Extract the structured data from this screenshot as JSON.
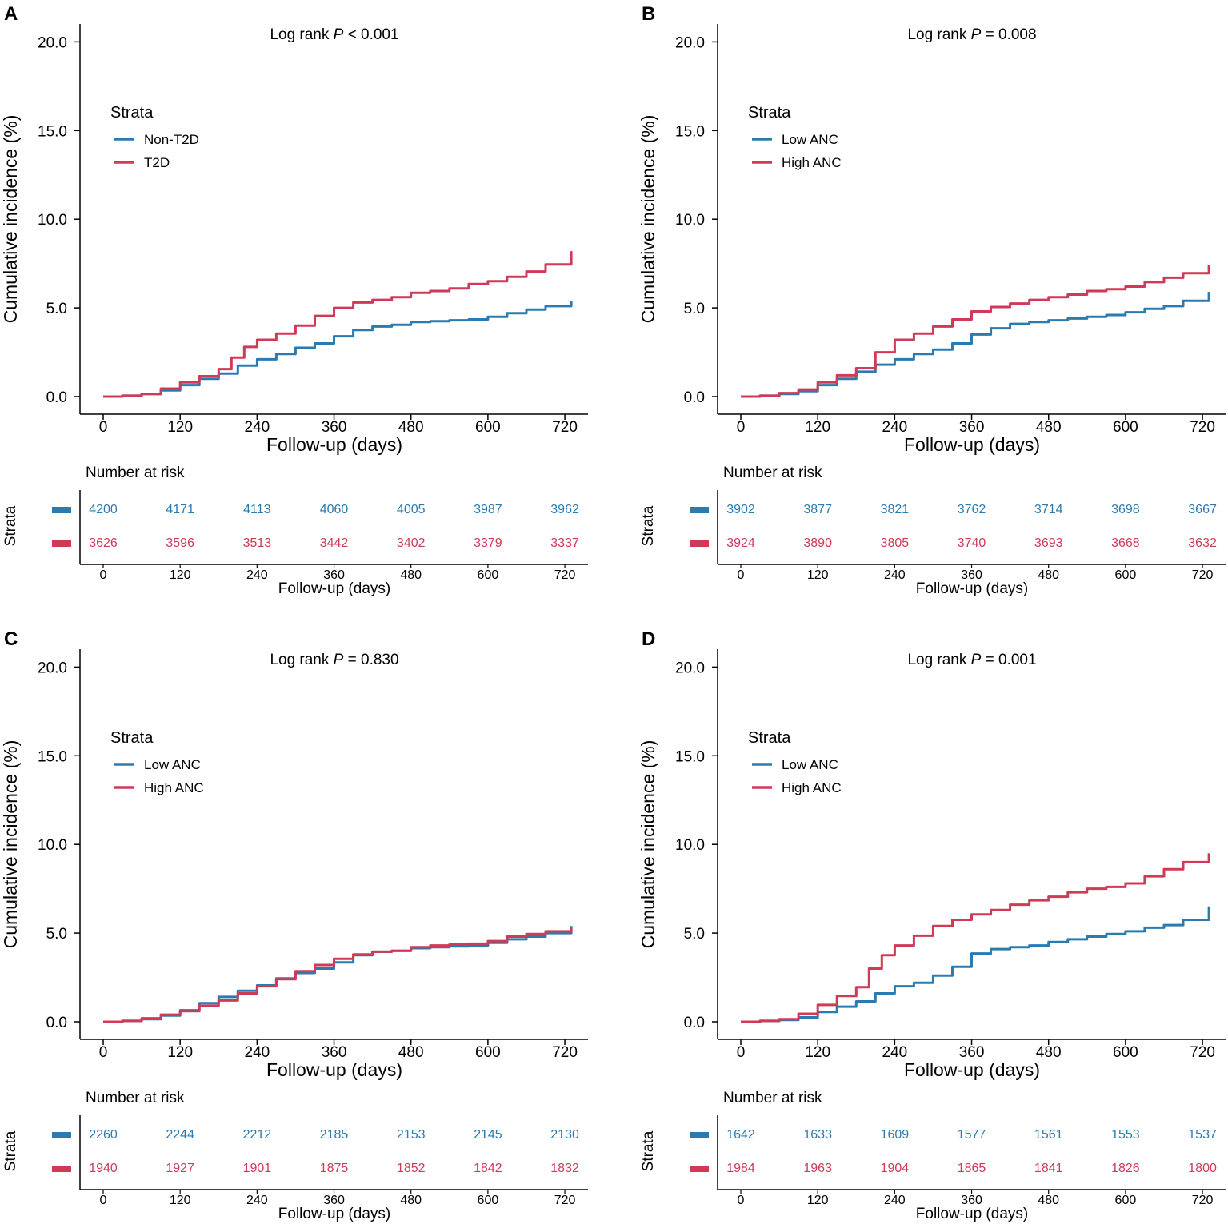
{
  "figure": {
    "x_axis_label": "Follow-up (days)",
    "y_axis_label": "Cumulative incidence (%)",
    "legend_title": "Strata",
    "risk_title": "Number at risk",
    "risk_axis_label": "Strata",
    "risk_x_axis_label": "Follow-up (days)",
    "colors": {
      "series1": "#2b7bb0",
      "series2": "#cf3a57"
    }
  },
  "chart_data": [
    {
      "panel": "A",
      "type": "line",
      "title_prefix": "Log rank ",
      "title_p": "P",
      "title_suffix": " < 0.001",
      "xlabel": "Follow-up (days)",
      "ylabel": "Cumulative incidence (%)",
      "xlim": [
        0,
        730
      ],
      "ylim": [
        0,
        20
      ],
      "x_ticks": [
        "0",
        "120",
        "240",
        "360",
        "480",
        "600",
        "720"
      ],
      "y_ticks": [
        "0.0",
        "5.0",
        "10.0",
        "15.0",
        "20.0"
      ],
      "legend_title": "Strata",
      "series": [
        {
          "name": "Non-T2D",
          "color": "#2b7bb0",
          "x": [
            0,
            30,
            60,
            90,
            120,
            150,
            180,
            210,
            240,
            270,
            300,
            330,
            360,
            390,
            420,
            450,
            480,
            510,
            540,
            570,
            600,
            630,
            660,
            690,
            730
          ],
          "y": [
            0,
            0.05,
            0.15,
            0.35,
            0.65,
            1.0,
            1.3,
            1.75,
            2.1,
            2.4,
            2.75,
            3.0,
            3.4,
            3.75,
            3.95,
            4.05,
            4.2,
            4.25,
            4.3,
            4.35,
            4.5,
            4.7,
            4.9,
            5.1,
            5.4
          ],
          "at_risk": [
            "4200",
            "4171",
            "4113",
            "4060",
            "4005",
            "3987",
            "3962"
          ]
        },
        {
          "name": "T2D",
          "color": "#cf3a57",
          "x": [
            0,
            30,
            60,
            90,
            120,
            150,
            180,
            200,
            220,
            240,
            270,
            300,
            330,
            360,
            390,
            420,
            450,
            480,
            510,
            540,
            570,
            600,
            630,
            660,
            690,
            730
          ],
          "y": [
            0,
            0.05,
            0.15,
            0.45,
            0.8,
            1.15,
            1.55,
            2.2,
            2.8,
            3.2,
            3.55,
            4.0,
            4.55,
            5.0,
            5.3,
            5.45,
            5.6,
            5.85,
            5.95,
            6.1,
            6.35,
            6.5,
            6.75,
            7.05,
            7.45,
            8.2
          ],
          "at_risk": [
            "3626",
            "3596",
            "3513",
            "3442",
            "3402",
            "3379",
            "3337"
          ]
        }
      ]
    },
    {
      "panel": "B",
      "type": "line",
      "title_prefix": "Log rank ",
      "title_p": "P",
      "title_suffix": " = 0.008",
      "xlabel": "Follow-up (days)",
      "ylabel": "Cumulative incidence (%)",
      "xlim": [
        0,
        730
      ],
      "ylim": [
        0,
        20
      ],
      "x_ticks": [
        "0",
        "120",
        "240",
        "360",
        "480",
        "600",
        "720"
      ],
      "y_ticks": [
        "0.0",
        "5.0",
        "10.0",
        "15.0",
        "20.0"
      ],
      "legend_title": "Strata",
      "series": [
        {
          "name": "Low ANC",
          "color": "#2b7bb0",
          "x": [
            0,
            30,
            60,
            90,
            120,
            150,
            180,
            210,
            240,
            270,
            300,
            330,
            360,
            390,
            420,
            450,
            480,
            510,
            540,
            570,
            600,
            630,
            660,
            690,
            730
          ],
          "y": [
            0,
            0.05,
            0.15,
            0.3,
            0.65,
            1.0,
            1.4,
            1.8,
            2.1,
            2.4,
            2.65,
            3.0,
            3.5,
            3.85,
            4.1,
            4.2,
            4.3,
            4.4,
            4.5,
            4.6,
            4.75,
            4.95,
            5.1,
            5.4,
            5.9
          ],
          "at_risk": [
            "3902",
            "3877",
            "3821",
            "3762",
            "3714",
            "3698",
            "3667"
          ]
        },
        {
          "name": "High ANC",
          "color": "#cf3a57",
          "x": [
            0,
            30,
            60,
            90,
            120,
            150,
            180,
            210,
            240,
            270,
            300,
            330,
            360,
            390,
            420,
            450,
            480,
            510,
            540,
            570,
            600,
            630,
            660,
            690,
            730
          ],
          "y": [
            0,
            0.05,
            0.2,
            0.4,
            0.8,
            1.2,
            1.6,
            2.5,
            3.2,
            3.55,
            3.95,
            4.35,
            4.8,
            5.05,
            5.25,
            5.45,
            5.6,
            5.75,
            5.95,
            6.05,
            6.2,
            6.45,
            6.7,
            6.95,
            7.4
          ],
          "at_risk": [
            "3924",
            "3890",
            "3805",
            "3740",
            "3693",
            "3668",
            "3632"
          ]
        }
      ]
    },
    {
      "panel": "C",
      "type": "line",
      "title_prefix": "Log rank ",
      "title_p": "P",
      "title_suffix": " = 0.830",
      "xlabel": "Follow-up (days)",
      "ylabel": "Cumulative incidence (%)",
      "xlim": [
        0,
        730
      ],
      "ylim": [
        0,
        20
      ],
      "x_ticks": [
        "0",
        "120",
        "240",
        "360",
        "480",
        "600",
        "720"
      ],
      "y_ticks": [
        "0.0",
        "5.0",
        "10.0",
        "15.0",
        "20.0"
      ],
      "legend_title": "Strata",
      "series": [
        {
          "name": "Low ANC",
          "color": "#2b7bb0",
          "x": [
            0,
            30,
            60,
            90,
            120,
            150,
            180,
            210,
            240,
            270,
            300,
            330,
            360,
            390,
            420,
            450,
            480,
            510,
            540,
            570,
            600,
            630,
            660,
            690,
            730
          ],
          "y": [
            0,
            0.05,
            0.15,
            0.35,
            0.65,
            1.05,
            1.4,
            1.75,
            2.05,
            2.45,
            2.75,
            3.0,
            3.35,
            3.75,
            3.95,
            4.0,
            4.15,
            4.2,
            4.25,
            4.3,
            4.45,
            4.65,
            4.8,
            5.0,
            5.4
          ],
          "at_risk": [
            "2260",
            "2244",
            "2212",
            "2185",
            "2153",
            "2145",
            "2130"
          ]
        },
        {
          "name": "High ANC",
          "color": "#cf3a57",
          "x": [
            0,
            30,
            60,
            90,
            120,
            150,
            180,
            210,
            240,
            270,
            300,
            330,
            360,
            390,
            420,
            450,
            480,
            510,
            540,
            570,
            600,
            630,
            660,
            690,
            730
          ],
          "y": [
            0,
            0.05,
            0.2,
            0.4,
            0.6,
            0.9,
            1.2,
            1.6,
            2.0,
            2.4,
            2.85,
            3.2,
            3.55,
            3.8,
            3.95,
            4.0,
            4.2,
            4.3,
            4.35,
            4.4,
            4.55,
            4.8,
            4.95,
            5.1,
            5.3
          ],
          "at_risk": [
            "1940",
            "1927",
            "1901",
            "1875",
            "1852",
            "1842",
            "1832"
          ]
        }
      ]
    },
    {
      "panel": "D",
      "type": "line",
      "title_prefix": "Log rank ",
      "title_p": "P",
      "title_suffix": " = 0.001",
      "xlabel": "Follow-up (days)",
      "ylabel": "Cumulative incidence (%)",
      "xlim": [
        0,
        730
      ],
      "ylim": [
        0,
        20
      ],
      "x_ticks": [
        "0",
        "120",
        "240",
        "360",
        "480",
        "600",
        "720"
      ],
      "y_ticks": [
        "0.0",
        "5.0",
        "10.0",
        "15.0",
        "20.0"
      ],
      "legend_title": "Strata",
      "series": [
        {
          "name": "Low ANC",
          "color": "#2b7bb0",
          "x": [
            0,
            30,
            60,
            90,
            120,
            150,
            180,
            210,
            240,
            270,
            300,
            330,
            360,
            390,
            420,
            450,
            480,
            510,
            540,
            570,
            600,
            630,
            660,
            690,
            730
          ],
          "y": [
            0,
            0.05,
            0.1,
            0.25,
            0.55,
            0.85,
            1.15,
            1.6,
            2.0,
            2.2,
            2.6,
            3.1,
            3.85,
            4.1,
            4.2,
            4.3,
            4.5,
            4.65,
            4.8,
            4.95,
            5.1,
            5.3,
            5.45,
            5.75,
            6.5
          ],
          "at_risk": [
            "1642",
            "1633",
            "1609",
            "1577",
            "1561",
            "1553",
            "1537"
          ]
        },
        {
          "name": "High ANC",
          "color": "#cf3a57",
          "x": [
            0,
            30,
            60,
            90,
            120,
            150,
            180,
            200,
            220,
            240,
            270,
            300,
            330,
            360,
            390,
            420,
            450,
            480,
            510,
            540,
            570,
            600,
            630,
            660,
            690,
            730
          ],
          "y": [
            0,
            0.05,
            0.15,
            0.45,
            0.95,
            1.45,
            1.95,
            3.0,
            3.75,
            4.3,
            4.85,
            5.4,
            5.75,
            6.05,
            6.3,
            6.6,
            6.85,
            7.05,
            7.3,
            7.5,
            7.6,
            7.8,
            8.2,
            8.6,
            9.0,
            9.5
          ],
          "at_risk": [
            "1984",
            "1963",
            "1904",
            "1865",
            "1841",
            "1826",
            "1800"
          ]
        }
      ]
    }
  ]
}
